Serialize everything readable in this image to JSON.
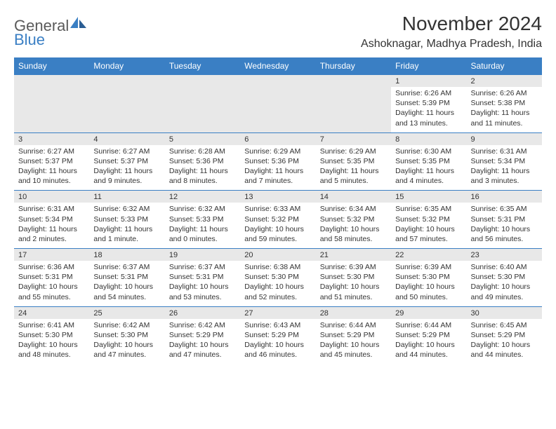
{
  "logo": {
    "text1": "General",
    "text2": "Blue"
  },
  "title": "November 2024",
  "location": "Ashoknagar, Madhya Pradesh, India",
  "colors": {
    "brand_blue": "#3a7fc4",
    "header_bg": "#3a7fc4",
    "header_text": "#ffffff",
    "daynum_bg": "#e8e8e8",
    "text": "#333333",
    "border": "#3a7fc4",
    "page_bg": "#ffffff"
  },
  "typography": {
    "title_fontsize": 28,
    "location_fontsize": 16,
    "dayhead_fontsize": 12,
    "daynum_fontsize": 11,
    "detail_fontsize": 10.5
  },
  "day_headers": [
    "Sunday",
    "Monday",
    "Tuesday",
    "Wednesday",
    "Thursday",
    "Friday",
    "Saturday"
  ],
  "weeks": [
    [
      {
        "empty": true
      },
      {
        "empty": true
      },
      {
        "empty": true
      },
      {
        "empty": true
      },
      {
        "empty": true
      },
      {
        "num": "1",
        "sunrise": "Sunrise: 6:26 AM",
        "sunset": "Sunset: 5:39 PM",
        "daylight": "Daylight: 11 hours and 13 minutes."
      },
      {
        "num": "2",
        "sunrise": "Sunrise: 6:26 AM",
        "sunset": "Sunset: 5:38 PM",
        "daylight": "Daylight: 11 hours and 11 minutes."
      }
    ],
    [
      {
        "num": "3",
        "sunrise": "Sunrise: 6:27 AM",
        "sunset": "Sunset: 5:37 PM",
        "daylight": "Daylight: 11 hours and 10 minutes."
      },
      {
        "num": "4",
        "sunrise": "Sunrise: 6:27 AM",
        "sunset": "Sunset: 5:37 PM",
        "daylight": "Daylight: 11 hours and 9 minutes."
      },
      {
        "num": "5",
        "sunrise": "Sunrise: 6:28 AM",
        "sunset": "Sunset: 5:36 PM",
        "daylight": "Daylight: 11 hours and 8 minutes."
      },
      {
        "num": "6",
        "sunrise": "Sunrise: 6:29 AM",
        "sunset": "Sunset: 5:36 PM",
        "daylight": "Daylight: 11 hours and 7 minutes."
      },
      {
        "num": "7",
        "sunrise": "Sunrise: 6:29 AM",
        "sunset": "Sunset: 5:35 PM",
        "daylight": "Daylight: 11 hours and 5 minutes."
      },
      {
        "num": "8",
        "sunrise": "Sunrise: 6:30 AM",
        "sunset": "Sunset: 5:35 PM",
        "daylight": "Daylight: 11 hours and 4 minutes."
      },
      {
        "num": "9",
        "sunrise": "Sunrise: 6:31 AM",
        "sunset": "Sunset: 5:34 PM",
        "daylight": "Daylight: 11 hours and 3 minutes."
      }
    ],
    [
      {
        "num": "10",
        "sunrise": "Sunrise: 6:31 AM",
        "sunset": "Sunset: 5:34 PM",
        "daylight": "Daylight: 11 hours and 2 minutes."
      },
      {
        "num": "11",
        "sunrise": "Sunrise: 6:32 AM",
        "sunset": "Sunset: 5:33 PM",
        "daylight": "Daylight: 11 hours and 1 minute."
      },
      {
        "num": "12",
        "sunrise": "Sunrise: 6:32 AM",
        "sunset": "Sunset: 5:33 PM",
        "daylight": "Daylight: 11 hours and 0 minutes."
      },
      {
        "num": "13",
        "sunrise": "Sunrise: 6:33 AM",
        "sunset": "Sunset: 5:32 PM",
        "daylight": "Daylight: 10 hours and 59 minutes."
      },
      {
        "num": "14",
        "sunrise": "Sunrise: 6:34 AM",
        "sunset": "Sunset: 5:32 PM",
        "daylight": "Daylight: 10 hours and 58 minutes."
      },
      {
        "num": "15",
        "sunrise": "Sunrise: 6:35 AM",
        "sunset": "Sunset: 5:32 PM",
        "daylight": "Daylight: 10 hours and 57 minutes."
      },
      {
        "num": "16",
        "sunrise": "Sunrise: 6:35 AM",
        "sunset": "Sunset: 5:31 PM",
        "daylight": "Daylight: 10 hours and 56 minutes."
      }
    ],
    [
      {
        "num": "17",
        "sunrise": "Sunrise: 6:36 AM",
        "sunset": "Sunset: 5:31 PM",
        "daylight": "Daylight: 10 hours and 55 minutes."
      },
      {
        "num": "18",
        "sunrise": "Sunrise: 6:37 AM",
        "sunset": "Sunset: 5:31 PM",
        "daylight": "Daylight: 10 hours and 54 minutes."
      },
      {
        "num": "19",
        "sunrise": "Sunrise: 6:37 AM",
        "sunset": "Sunset: 5:31 PM",
        "daylight": "Daylight: 10 hours and 53 minutes."
      },
      {
        "num": "20",
        "sunrise": "Sunrise: 6:38 AM",
        "sunset": "Sunset: 5:30 PM",
        "daylight": "Daylight: 10 hours and 52 minutes."
      },
      {
        "num": "21",
        "sunrise": "Sunrise: 6:39 AM",
        "sunset": "Sunset: 5:30 PM",
        "daylight": "Daylight: 10 hours and 51 minutes."
      },
      {
        "num": "22",
        "sunrise": "Sunrise: 6:39 AM",
        "sunset": "Sunset: 5:30 PM",
        "daylight": "Daylight: 10 hours and 50 minutes."
      },
      {
        "num": "23",
        "sunrise": "Sunrise: 6:40 AM",
        "sunset": "Sunset: 5:30 PM",
        "daylight": "Daylight: 10 hours and 49 minutes."
      }
    ],
    [
      {
        "num": "24",
        "sunrise": "Sunrise: 6:41 AM",
        "sunset": "Sunset: 5:30 PM",
        "daylight": "Daylight: 10 hours and 48 minutes."
      },
      {
        "num": "25",
        "sunrise": "Sunrise: 6:42 AM",
        "sunset": "Sunset: 5:30 PM",
        "daylight": "Daylight: 10 hours and 47 minutes."
      },
      {
        "num": "26",
        "sunrise": "Sunrise: 6:42 AM",
        "sunset": "Sunset: 5:29 PM",
        "daylight": "Daylight: 10 hours and 47 minutes."
      },
      {
        "num": "27",
        "sunrise": "Sunrise: 6:43 AM",
        "sunset": "Sunset: 5:29 PM",
        "daylight": "Daylight: 10 hours and 46 minutes."
      },
      {
        "num": "28",
        "sunrise": "Sunrise: 6:44 AM",
        "sunset": "Sunset: 5:29 PM",
        "daylight": "Daylight: 10 hours and 45 minutes."
      },
      {
        "num": "29",
        "sunrise": "Sunrise: 6:44 AM",
        "sunset": "Sunset: 5:29 PM",
        "daylight": "Daylight: 10 hours and 44 minutes."
      },
      {
        "num": "30",
        "sunrise": "Sunrise: 6:45 AM",
        "sunset": "Sunset: 5:29 PM",
        "daylight": "Daylight: 10 hours and 44 minutes."
      }
    ]
  ]
}
